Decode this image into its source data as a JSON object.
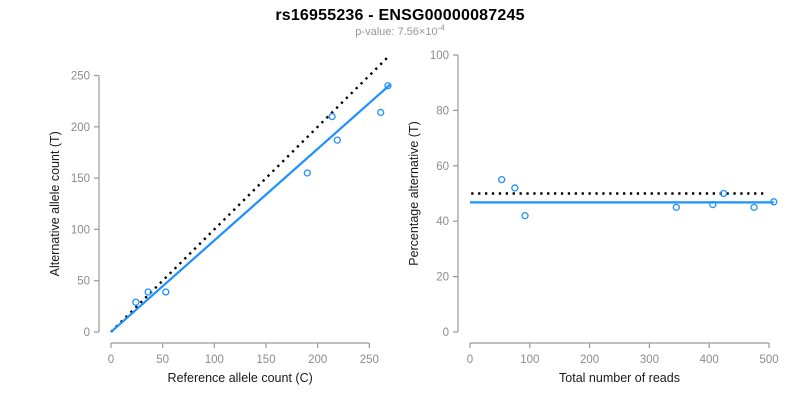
{
  "header": {
    "title": "rs16955236 - ENSG00000087245",
    "subtitle_prefix": "p-value: 7.56×10",
    "subtitle_exponent": "-4"
  },
  "style": {
    "accent_blue": "#1E90FF",
    "identity_black": "#000000",
    "axis_gray": "#999999",
    "tick_label_gray": "#8c8c8c",
    "subtitle_gray": "#979797",
    "text_black": "#1a1a1a"
  },
  "chart_data": [
    {
      "type": "scatter",
      "name": "allele-counts-scatter",
      "xlabel": "Reference allele count (C)",
      "ylabel": "Alternative allele count (T)",
      "xlim": [
        0,
        270
      ],
      "ylim": [
        0,
        270
      ],
      "xticks": [
        0,
        50,
        100,
        150,
        200,
        250
      ],
      "yticks": [
        0,
        50,
        100,
        150,
        200,
        250
      ],
      "grid": false,
      "points": [
        [
          24,
          29
        ],
        [
          36,
          39
        ],
        [
          53,
          39
        ],
        [
          190,
          155
        ],
        [
          219,
          187
        ],
        [
          214,
          210
        ],
        [
          261,
          214
        ],
        [
          268,
          240
        ]
      ],
      "lines": [
        {
          "name": "identity-line",
          "style": "dotted",
          "color": "#000000",
          "from": [
            0,
            0
          ],
          "to": [
            270,
            270
          ]
        },
        {
          "name": "fit-line",
          "style": "solid",
          "color": "#1E90FF",
          "from": [
            0,
            0
          ],
          "to": [
            270,
            241
          ]
        }
      ]
    },
    {
      "type": "scatter",
      "name": "percentage-vs-reads-scatter",
      "xlabel": "Total number of reads",
      "ylabel": "Percentage alternative (T)",
      "xlim": [
        0,
        510
      ],
      "ylim": [
        0,
        100
      ],
      "xticks": [
        0,
        100,
        200,
        300,
        400,
        500
      ],
      "yticks": [
        0,
        20,
        40,
        60,
        80,
        100
      ],
      "grid": false,
      "points": [
        [
          53,
          55
        ],
        [
          75,
          52
        ],
        [
          92,
          42
        ],
        [
          345,
          45
        ],
        [
          406,
          46
        ],
        [
          424,
          50
        ],
        [
          475,
          45
        ],
        [
          508,
          47
        ]
      ],
      "lines": [
        {
          "name": "expected-50pct-line",
          "style": "dotted",
          "color": "#000000",
          "from": [
            2,
            50
          ],
          "to": [
            495,
            50
          ]
        },
        {
          "name": "mean-percentage-line",
          "style": "solid",
          "color": "#1E90FF",
          "from": [
            0,
            46.8
          ],
          "to": [
            508,
            46.8
          ]
        }
      ]
    }
  ]
}
